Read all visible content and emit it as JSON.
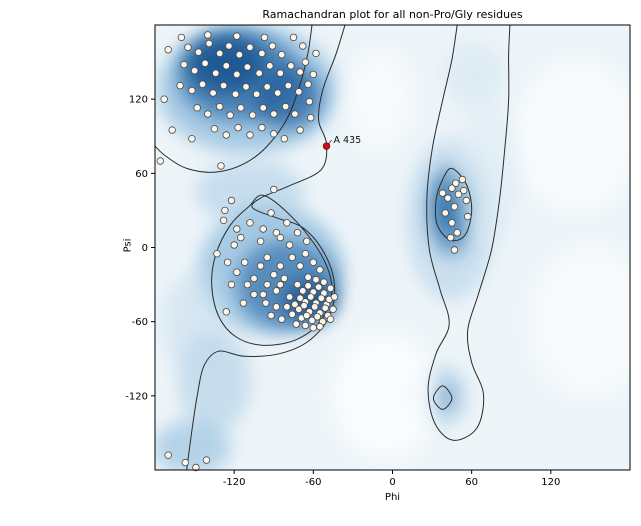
{
  "chart_data": {
    "type": "scatter",
    "title": "Ramachandran plot for all non-Pro/Gly residues",
    "xlabel": "Phi",
    "ylabel": "Psi",
    "xlim": [
      -180,
      180
    ],
    "ylim": [
      -180,
      180
    ],
    "xticks": [
      -120,
      -60,
      0,
      60,
      120
    ],
    "yticks": [
      -120,
      -60,
      0,
      60,
      120
    ],
    "legend": null,
    "grid": false,
    "annotation": {
      "label": "A 435",
      "phi": -50,
      "psi": 82,
      "color": "#cc1111"
    },
    "colors": {
      "background": "#ffffff",
      "plot_base": "#eef5f9",
      "contour": "#2b2b2b",
      "point_fill": "#fdf6ec",
      "point_stroke": "#4a4a4a",
      "text": "#000000"
    },
    "points": [
      [
        -155,
        162
      ],
      [
        -147,
        158
      ],
      [
        -139,
        165
      ],
      [
        -131,
        157
      ],
      [
        -124,
        163
      ],
      [
        -116,
        156
      ],
      [
        -108,
        162
      ],
      [
        -99,
        157
      ],
      [
        -91,
        163
      ],
      [
        -84,
        156
      ],
      [
        -158,
        148
      ],
      [
        -150,
        143
      ],
      [
        -142,
        149
      ],
      [
        -134,
        141
      ],
      [
        -126,
        147
      ],
      [
        -118,
        140
      ],
      [
        -110,
        146
      ],
      [
        -101,
        141
      ],
      [
        -93,
        147
      ],
      [
        -85,
        141
      ],
      [
        -77,
        147
      ],
      [
        -70,
        142
      ],
      [
        -161,
        131
      ],
      [
        -152,
        127
      ],
      [
        -144,
        132
      ],
      [
        -136,
        125
      ],
      [
        -128,
        131
      ],
      [
        -119,
        124
      ],
      [
        -111,
        130
      ],
      [
        -103,
        124
      ],
      [
        -95,
        130
      ],
      [
        -87,
        125
      ],
      [
        -79,
        131
      ],
      [
        -71,
        126
      ],
      [
        -64,
        132
      ],
      [
        -148,
        113
      ],
      [
        -140,
        108
      ],
      [
        -131,
        114
      ],
      [
        -123,
        107
      ],
      [
        -115,
        113
      ],
      [
        -106,
        107
      ],
      [
        -98,
        113
      ],
      [
        -90,
        108
      ],
      [
        -81,
        114
      ],
      [
        -74,
        108
      ],
      [
        -135,
        96
      ],
      [
        -126,
        91
      ],
      [
        -117,
        97
      ],
      [
        -108,
        91
      ],
      [
        -99,
        97
      ],
      [
        -90,
        92
      ],
      [
        -66,
        150
      ],
      [
        -60,
        140
      ],
      [
        -63,
        118
      ],
      [
        -58,
        157
      ],
      [
        -68,
        163
      ],
      [
        -75,
        170
      ],
      [
        -97,
        170
      ],
      [
        -118,
        171
      ],
      [
        -140,
        172
      ],
      [
        -160,
        170
      ],
      [
        -170,
        160
      ],
      [
        -173,
        120
      ],
      [
        -167,
        95
      ],
      [
        -152,
        88
      ],
      [
        -82,
        88
      ],
      [
        -70,
        95
      ],
      [
        -62,
        105
      ],
      [
        -128,
        22
      ],
      [
        -118,
        15
      ],
      [
        -108,
        20
      ],
      [
        -120,
        2
      ],
      [
        -133,
        -5
      ],
      [
        -112,
        -12
      ],
      [
        -100,
        5
      ],
      [
        -95,
        -8
      ],
      [
        -88,
        12
      ],
      [
        -92,
        28
      ],
      [
        -80,
        20
      ],
      [
        -105,
        -25
      ],
      [
        -122,
        -30
      ],
      [
        -98,
        -38
      ],
      [
        -85,
        -30
      ],
      [
        -113,
        -45
      ],
      [
        -126,
        -52
      ],
      [
        -85,
        -15
      ],
      [
        -90,
        -22
      ],
      [
        -95,
        -30
      ],
      [
        -100,
        -15
      ],
      [
        -82,
        -25
      ],
      [
        -88,
        -35
      ],
      [
        -96,
        -45
      ],
      [
        -105,
        -38
      ],
      [
        -110,
        -30
      ],
      [
        -88,
        -48
      ],
      [
        -92,
        -55
      ],
      [
        -84,
        -58
      ],
      [
        -118,
        -20
      ],
      [
        -125,
        -12
      ],
      [
        -115,
        8
      ],
      [
        -76,
        -8
      ],
      [
        -70,
        -15
      ],
      [
        -66,
        -5
      ],
      [
        -60,
        -12
      ],
      [
        -55,
        -18
      ],
      [
        -78,
        2
      ],
      [
        -85,
        8
      ],
      [
        -98,
        15
      ],
      [
        -72,
        12
      ],
      [
        -65,
        5
      ],
      [
        -122,
        38
      ],
      [
        -127,
        30
      ],
      [
        -90,
        47
      ],
      [
        -72,
        -30
      ],
      [
        -68,
        -35
      ],
      [
        -64,
        -31
      ],
      [
        -60,
        -36
      ],
      [
        -56,
        -32
      ],
      [
        -52,
        -37
      ],
      [
        -70,
        -41
      ],
      [
        -66,
        -44
      ],
      [
        -62,
        -40
      ],
      [
        -58,
        -45
      ],
      [
        -54,
        -41
      ],
      [
        -50,
        -46
      ],
      [
        -74,
        -46
      ],
      [
        -71,
        -50
      ],
      [
        -67,
        -47
      ],
      [
        -63,
        -52
      ],
      [
        -59,
        -48
      ],
      [
        -55,
        -53
      ],
      [
        -51,
        -49
      ],
      [
        -48,
        -42
      ],
      [
        -76,
        -54
      ],
      [
        -69,
        -57
      ],
      [
        -65,
        -55
      ],
      [
        -61,
        -59
      ],
      [
        -57,
        -56
      ],
      [
        -53,
        -60
      ],
      [
        -49,
        -55
      ],
      [
        -73,
        -62
      ],
      [
        -66,
        -63
      ],
      [
        -60,
        -65
      ],
      [
        -55,
        -64
      ],
      [
        -47,
        -58
      ],
      [
        -45,
        -50
      ],
      [
        -78,
        -40
      ],
      [
        -80,
        -48
      ],
      [
        -64,
        -24
      ],
      [
        -58,
        -26
      ],
      [
        -52,
        -28
      ],
      [
        -47,
        -33
      ],
      [
        -44,
        -40
      ],
      [
        45,
        48
      ],
      [
        50,
        43
      ],
      [
        42,
        40
      ],
      [
        48,
        52
      ],
      [
        54,
        46
      ],
      [
        47,
        33
      ],
      [
        40,
        28
      ],
      [
        53,
        55
      ],
      [
        45,
        20
      ],
      [
        38,
        44
      ],
      [
        56,
        38
      ],
      [
        49,
        12
      ],
      [
        44,
        8
      ],
      [
        57,
        25
      ],
      [
        -157,
        -174
      ],
      [
        -149,
        -178
      ],
      [
        -141,
        -172
      ],
      [
        -170,
        -168
      ],
      [
        -176,
        70
      ],
      [
        47,
        -2
      ],
      [
        -130,
        66
      ]
    ],
    "density_regions": [
      {
        "phi": -110,
        "psi": 128,
        "rx": 68,
        "ry": 52,
        "color": "#8ebcdd",
        "opacity": 0.75
      },
      {
        "phi": -116,
        "psi": 138,
        "rx": 46,
        "ry": 36,
        "color": "#3c78b0",
        "opacity": 0.8
      },
      {
        "phi": -126,
        "psi": 148,
        "rx": 30,
        "ry": 24,
        "color": "#16538f",
        "opacity": 0.85
      },
      {
        "phi": -80,
        "psi": 122,
        "rx": 26,
        "ry": 26,
        "color": "#1d5c9b",
        "opacity": 0.7
      },
      {
        "phi": -108,
        "psi": 45,
        "rx": 42,
        "ry": 26,
        "color": "#b3d2e8",
        "opacity": 0.65
      },
      {
        "phi": -92,
        "psi": -18,
        "rx": 55,
        "ry": 52,
        "color": "#8ebcdd",
        "opacity": 0.75
      },
      {
        "phi": -80,
        "psi": -30,
        "rx": 38,
        "ry": 36,
        "color": "#3c78b0",
        "opacity": 0.75
      },
      {
        "phi": -63,
        "psi": -43,
        "rx": 20,
        "ry": 17,
        "color": "#16538f",
        "opacity": 0.8
      },
      {
        "phi": -135,
        "psi": -108,
        "rx": 28,
        "ry": 42,
        "color": "#a8cbe3",
        "opacity": 0.55
      },
      {
        "phi": -152,
        "psi": -162,
        "rx": 30,
        "ry": 22,
        "color": "#8ebcdd",
        "opacity": 0.6
      },
      {
        "phi": -150,
        "psi": -60,
        "rx": 25,
        "ry": 40,
        "color": "#c2daec",
        "opacity": 0.5
      },
      {
        "phi": 44,
        "psi": 22,
        "rx": 34,
        "ry": 66,
        "color": "#b3d2e8",
        "opacity": 0.6
      },
      {
        "phi": 44,
        "psi": 30,
        "rx": 17,
        "ry": 36,
        "color": "#4381b5",
        "opacity": 0.75
      },
      {
        "phi": 45,
        "psi": 33,
        "rx": 10,
        "ry": 19,
        "color": "#2466a3",
        "opacity": 0.8
      },
      {
        "phi": 38,
        "psi": -120,
        "rx": 20,
        "ry": 26,
        "color": "#b3d2e8",
        "opacity": 0.6
      },
      {
        "phi": 38,
        "psi": -121,
        "rx": 9,
        "ry": 12,
        "color": "#5e96c2",
        "opacity": 0.75
      },
      {
        "phi": 62,
        "psi": 140,
        "rx": 24,
        "ry": 28,
        "color": "#d4e6f1",
        "opacity": 0.6
      },
      {
        "phi": 72,
        "psi": 60,
        "rx": 26,
        "ry": 60,
        "color": "#dcebf4",
        "opacity": 0.55
      },
      {
        "phi": -5,
        "psi": -120,
        "rx": 40,
        "ry": 50,
        "color": "#ffffff",
        "opacity": 0.7
      },
      {
        "phi": 140,
        "psi": 90,
        "rx": 45,
        "ry": 60,
        "color": "#fbfdfe",
        "opacity": 0.8
      },
      {
        "phi": 150,
        "psi": -60,
        "rx": 45,
        "ry": 60,
        "color": "#fbfdfe",
        "opacity": 0.7
      },
      {
        "phi": -10,
        "psi": 120,
        "rx": 25,
        "ry": 40,
        "color": "#ffffff",
        "opacity": 0.5
      }
    ],
    "contours": [
      {
        "name": "outer-left",
        "closed": false,
        "points": [
          [
            -36,
            180
          ],
          [
            -43,
            156
          ],
          [
            -53,
            127
          ],
          [
            -56,
            103
          ],
          [
            -50,
            84
          ],
          [
            -54,
            63
          ],
          [
            -78,
            50
          ],
          [
            -100,
            40
          ],
          [
            -106,
            32
          ],
          [
            -88,
            24
          ],
          [
            -68,
            16
          ],
          [
            -52,
            -4
          ],
          [
            -44,
            -30
          ],
          [
            -48,
            -56
          ],
          [
            -64,
            -76
          ],
          [
            -86,
            -86
          ],
          [
            -112,
            -88
          ],
          [
            -132,
            -84
          ],
          [
            -143,
            -96
          ],
          [
            -148,
            -120
          ],
          [
            -152,
            -148
          ],
          [
            -156,
            -180
          ]
        ]
      },
      {
        "name": "inner-beta",
        "closed": false,
        "points": [
          [
            -61,
            180
          ],
          [
            -64,
            158
          ],
          [
            -70,
            132
          ],
          [
            -80,
            104
          ],
          [
            -95,
            82
          ],
          [
            -112,
            68
          ],
          [
            -134,
            61
          ],
          [
            -156,
            64
          ],
          [
            -172,
            74
          ],
          [
            -180,
            82
          ]
        ]
      },
      {
        "name": "inner-alpha",
        "closed": true,
        "points": [
          [
            -97,
            42
          ],
          [
            -72,
            20
          ],
          [
            -52,
            -10
          ],
          [
            -46,
            -36
          ],
          [
            -55,
            -60
          ],
          [
            -74,
            -75
          ],
          [
            -99,
            -79
          ],
          [
            -119,
            -72
          ],
          [
            -132,
            -55
          ],
          [
            -137,
            -30
          ],
          [
            -134,
            -6
          ],
          [
            -123,
            18
          ],
          [
            -109,
            33
          ]
        ]
      },
      {
        "name": "outer-right",
        "closed": false,
        "points": [
          [
            49,
            180
          ],
          [
            45,
            152
          ],
          [
            38,
            119
          ],
          [
            30,
            79
          ],
          [
            26,
            38
          ],
          [
            28,
            -2
          ],
          [
            36,
            -34
          ],
          [
            43,
            -62
          ],
          [
            33,
            -86
          ],
          [
            27,
            -114
          ],
          [
            32,
            -142
          ],
          [
            46,
            -156
          ],
          [
            64,
            -146
          ],
          [
            69,
            -119
          ],
          [
            60,
            -93
          ],
          [
            57,
            -67
          ],
          [
            65,
            -38
          ],
          [
            75,
            -2
          ],
          [
            81,
            38
          ],
          [
            85,
            79
          ],
          [
            88,
            119
          ],
          [
            88,
            155
          ],
          [
            89,
            180
          ]
        ]
      },
      {
        "name": "inner-left-handed",
        "closed": true,
        "points": [
          [
            45,
            64
          ],
          [
            56,
            51
          ],
          [
            60,
            30
          ],
          [
            55,
            10
          ],
          [
            44,
            6
          ],
          [
            34,
            18
          ],
          [
            33,
            38
          ],
          [
            38,
            55
          ]
        ]
      },
      {
        "name": "small-bottom-circle",
        "closed": true,
        "points": [
          [
            38,
            -112
          ],
          [
            45,
            -122
          ],
          [
            38,
            -131
          ],
          [
            31,
            -122
          ]
        ]
      }
    ]
  }
}
